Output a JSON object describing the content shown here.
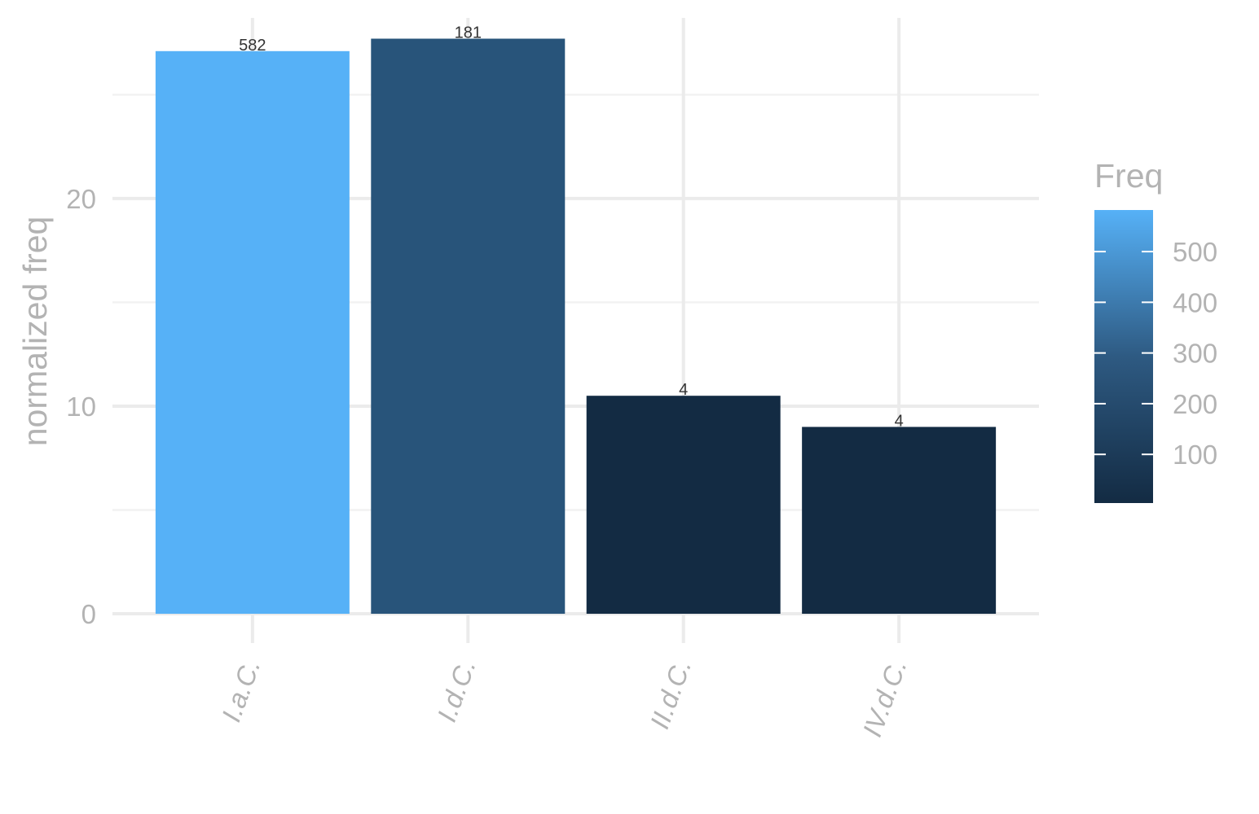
{
  "chart_data": {
    "type": "bar",
    "categories": [
      "I.a.C.",
      "I.d.C.",
      "II.d.C.",
      "IV.d.C."
    ],
    "values": [
      27.1,
      27.7,
      10.5,
      9.0
    ],
    "labels": [
      "582",
      "181",
      "4",
      "4"
    ],
    "fill_values": [
      582,
      181,
      4,
      4
    ],
    "ylabel": "normalized freq",
    "xlabel": "",
    "ylim": [
      0,
      28.7
    ],
    "y_ticks": [
      0,
      10,
      20
    ],
    "grid": true,
    "legend": {
      "title": "Freq",
      "position": "right",
      "type": "colorbar",
      "range": [
        4,
        582
      ],
      "ticks": [
        100,
        200,
        300,
        400,
        500
      ],
      "color_low": "#132B43",
      "color_high": "#56B1F7"
    }
  }
}
